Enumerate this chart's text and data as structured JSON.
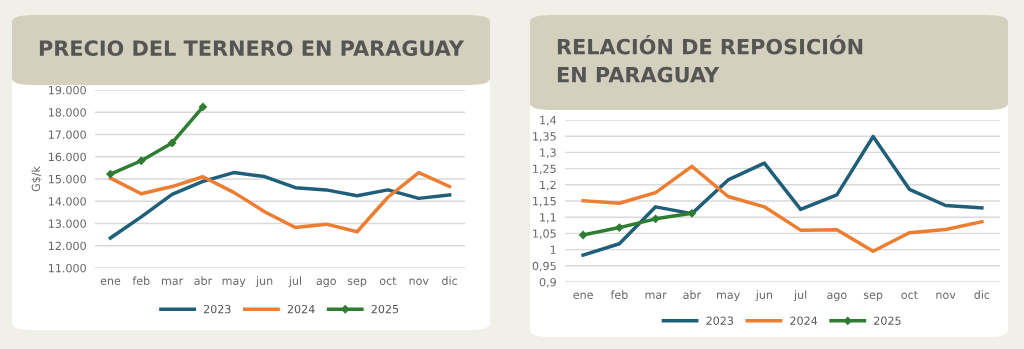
{
  "chart_data": [
    {
      "type": "line",
      "title": "PRECIO DEL TERNERO EN PARAGUAY",
      "ylabel": "G$/k",
      "categories": [
        "ene",
        "feb",
        "mar",
        "abr",
        "may",
        "jun",
        "jul",
        "ago",
        "sep",
        "oct",
        "nov",
        "dic"
      ],
      "series": [
        {
          "name": "2023",
          "color": "#1f5f7a",
          "values": [
            12350,
            13300,
            14310,
            14890,
            15290,
            15110,
            14610,
            14510,
            14250,
            14510,
            14130,
            14280
          ]
        },
        {
          "name": "2024",
          "color": "#ed7d31",
          "values": [
            15040,
            14340,
            14660,
            15100,
            14400,
            13530,
            12820,
            12970,
            12630,
            14180,
            15290,
            14660
          ]
        },
        {
          "name": "2025",
          "color": "#2e7d32",
          "marker": "diamond",
          "values": [
            15220,
            15820,
            16620,
            18240,
            null,
            null,
            null,
            null,
            null,
            null,
            null,
            null
          ]
        }
      ],
      "ylim": [
        11000,
        19000
      ],
      "yticks": [
        {
          "value": 11000,
          "label": "11.000"
        },
        {
          "value": 12000,
          "label": "12.000"
        },
        {
          "value": 13000,
          "label": "13.000"
        },
        {
          "value": 14000,
          "label": "14.000"
        },
        {
          "value": 15000,
          "label": "15.000"
        },
        {
          "value": 16000,
          "label": "16.000"
        },
        {
          "value": 17000,
          "label": "17.000"
        },
        {
          "value": 18000,
          "label": "18.000"
        },
        {
          "value": 19000,
          "label": "19.000"
        }
      ],
      "grid": "y",
      "legend": "bottom"
    },
    {
      "type": "line",
      "title": "RELACIÓN DE REPOSICIÓN\nEN PARAGUAY",
      "categories": [
        "ene",
        "feb",
        "mar",
        "abr",
        "may",
        "jun",
        "jul",
        "ago",
        "sep",
        "oct",
        "nov",
        "dic"
      ],
      "series": [
        {
          "name": "2023",
          "color": "#1f5f7a",
          "values": [
            0.983,
            1.018,
            1.132,
            1.111,
            1.215,
            1.267,
            1.124,
            1.169,
            1.349,
            1.186,
            1.136,
            1.129
          ]
        },
        {
          "name": "2024",
          "color": "#ed7d31",
          "values": [
            1.151,
            1.143,
            1.176,
            1.257,
            1.164,
            1.132,
            1.06,
            1.061,
            0.995,
            1.052,
            1.062,
            1.086
          ]
        },
        {
          "name": "2025",
          "color": "#2e7d32",
          "marker": "diamond",
          "values": [
            1.045,
            1.068,
            1.095,
            1.112,
            null,
            null,
            null,
            null,
            null,
            null,
            null,
            null
          ]
        }
      ],
      "ylim": [
        0.9,
        1.4
      ],
      "yticks": [
        {
          "value": 0.9,
          "label": "0,9"
        },
        {
          "value": 0.95,
          "label": "0,95"
        },
        {
          "value": 1,
          "label": "1"
        },
        {
          "value": 1.05,
          "label": "1,05"
        },
        {
          "value": 1.1,
          "label": "1,1"
        },
        {
          "value": 1.15,
          "label": "1,15"
        },
        {
          "value": 1.2,
          "label": "1,2"
        },
        {
          "value": 1.25,
          "label": "1,25"
        },
        {
          "value": 1.3,
          "label": "1,3"
        },
        {
          "value": 1.35,
          "label": "1,35"
        },
        {
          "value": 1.4,
          "label": "1,4"
        }
      ],
      "grid": "y",
      "legend": "bottom"
    }
  ]
}
